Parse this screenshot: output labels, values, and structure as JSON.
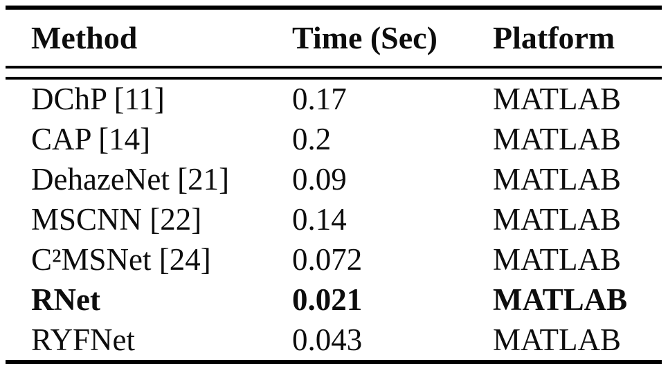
{
  "table": {
    "headers": [
      "Method",
      "Time (Sec)",
      "Platform"
    ],
    "rows": [
      {
        "method": "DChP [11]",
        "time": "0.17",
        "platform": "MATLAB",
        "bold": false
      },
      {
        "method": "CAP [14]",
        "time": "0.2",
        "platform": "MATLAB",
        "bold": false
      },
      {
        "method": "DehazeNet [21]",
        "time": "0.09",
        "platform": "MATLAB",
        "bold": false
      },
      {
        "method": "MSCNN [22]",
        "time": "0.14",
        "platform": "MATLAB",
        "bold": false
      },
      {
        "method": "C²MSNet [24]",
        "time": "0.072",
        "platform": "MATLAB",
        "bold": false
      },
      {
        "method": "RNet",
        "time": "0.021",
        "platform": "MATLAB",
        "bold": true
      },
      {
        "method": "RYFNet",
        "time": "0.043",
        "platform": "MATLAB",
        "bold": false
      }
    ]
  },
  "colors": {
    "background": "#ffffff",
    "text": "#0d0d0d",
    "rule": "#000000"
  }
}
